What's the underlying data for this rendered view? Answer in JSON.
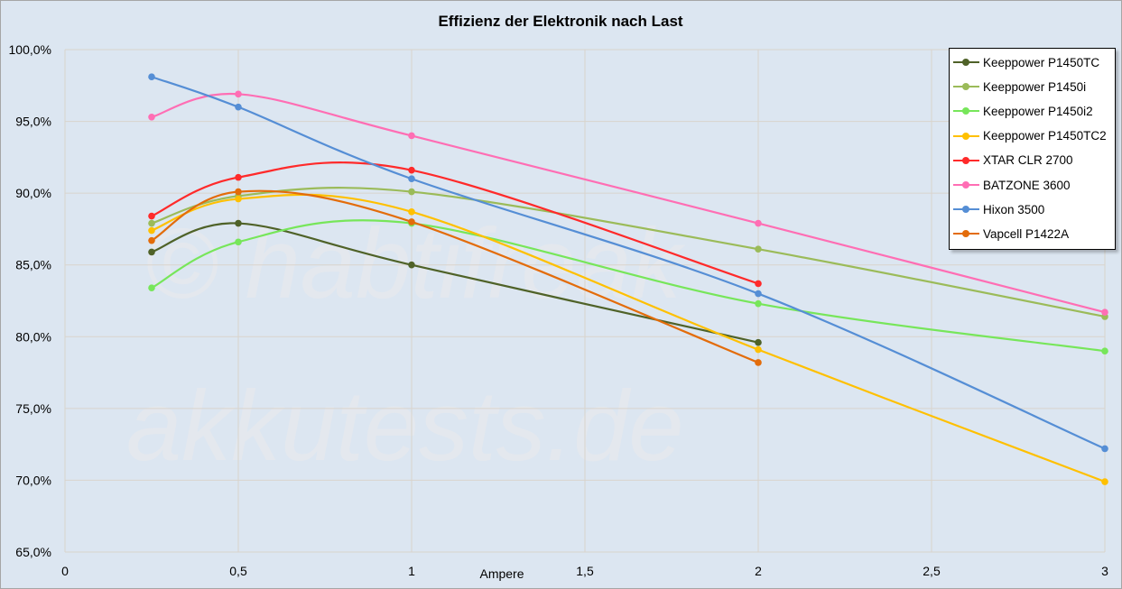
{
  "chart_data": {
    "type": "line",
    "title": "Effizienz der Elektronik nach Last",
    "xlabel": "Ampere",
    "ylabel": "",
    "xlim": [
      0,
      3
    ],
    "ylim": [
      65,
      100
    ],
    "x_ticks": [
      "0",
      "0,5",
      "1",
      "1,5",
      "2",
      "2,5",
      "3"
    ],
    "x_tick_values": [
      0,
      0.5,
      1,
      1.5,
      2,
      2.5,
      3
    ],
    "y_ticks": [
      "65,0%",
      "70,0%",
      "75,0%",
      "80,0%",
      "85,0%",
      "90,0%",
      "95,0%",
      "100,0%"
    ],
    "y_tick_values": [
      65,
      70,
      75,
      80,
      85,
      90,
      95,
      100
    ],
    "grid": true,
    "smoothed": true,
    "legend_position": "top-right",
    "watermark": [
      "© habtifreak",
      "akkutests.de"
    ],
    "series": [
      {
        "name": "Keeppower P1450TC",
        "color": "#4f6228",
        "x": [
          0.25,
          0.5,
          1,
          2
        ],
        "values": [
          85.9,
          87.9,
          85.0,
          79.6
        ]
      },
      {
        "name": "Keeppower P1450i",
        "color": "#9bbb59",
        "x": [
          0.25,
          0.5,
          1,
          2,
          3
        ],
        "values": [
          87.9,
          89.8,
          90.1,
          86.1,
          81.4
        ]
      },
      {
        "name": "Keeppower P1450i2",
        "color": "#77e65a",
        "x": [
          0.25,
          0.5,
          1,
          2,
          3
        ],
        "values": [
          83.4,
          86.6,
          87.9,
          82.3,
          79.0
        ]
      },
      {
        "name": "Keeppower P1450TC2",
        "color": "#ffc000",
        "x": [
          0.25,
          0.5,
          1,
          2,
          3
        ],
        "values": [
          87.4,
          89.6,
          88.7,
          79.1,
          69.9
        ]
      },
      {
        "name": "XTAR CLR 2700",
        "color": "#ff2a2a",
        "x": [
          0.25,
          0.5,
          1,
          2
        ],
        "values": [
          88.4,
          91.1,
          91.6,
          83.7
        ]
      },
      {
        "name": "BATZONE 3600",
        "color": "#ff6eb4",
        "x": [
          0.25,
          0.5,
          1,
          2,
          3
        ],
        "values": [
          95.3,
          96.9,
          94.0,
          87.9,
          81.7
        ]
      },
      {
        "name": "Hixon 3500",
        "color": "#558ed5",
        "x": [
          0.25,
          0.5,
          1,
          2,
          3
        ],
        "values": [
          98.1,
          96.0,
          91.0,
          83.0,
          72.2
        ]
      },
      {
        "name": "Vapcell P1422A",
        "color": "#e36c0a",
        "x": [
          0.25,
          0.5,
          1,
          2
        ],
        "values": [
          86.7,
          90.1,
          88.0,
          78.2
        ]
      }
    ]
  }
}
